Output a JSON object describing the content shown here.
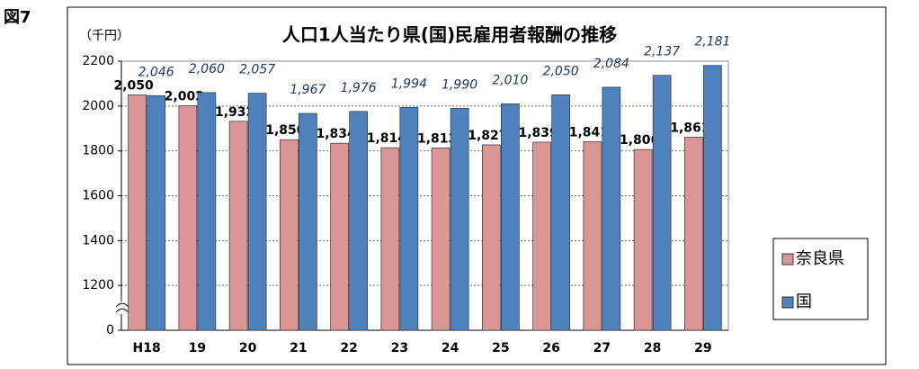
{
  "figure_label": "図7",
  "chart_data": {
    "type": "bar",
    "title": "人口1人当たり県(国)民雇用者報酬の推移",
    "y_unit": "（千円）",
    "categories": [
      "H18",
      "19",
      "20",
      "21",
      "22",
      "23",
      "24",
      "25",
      "26",
      "27",
      "28",
      "29"
    ],
    "series": [
      {
        "name": "奈良県",
        "color": "#d99694",
        "values": [
          2050,
          2002,
          1932,
          1850,
          1834,
          1814,
          1813,
          1827,
          1839,
          1841,
          1806,
          1861
        ],
        "value_labels": [
          "2,050",
          "2,002",
          "1,932",
          "1,850",
          "1,834",
          "1,814",
          "1,813",
          "1,827",
          "1,839",
          "1,841",
          "1,806",
          "1,861"
        ]
      },
      {
        "name": "国",
        "color": "#4f81bd",
        "values": [
          2046,
          2060,
          2057,
          1967,
          1976,
          1994,
          1990,
          2010,
          2050,
          2084,
          2137,
          2181
        ],
        "value_labels": [
          "2,046",
          "2,060",
          "2,057",
          "1,967",
          "1,976",
          "1,994",
          "1,990",
          "2,010",
          "2,050",
          "2,084",
          "2,137",
          "2,181"
        ]
      }
    ],
    "ylim": [
      0,
      2200
    ],
    "yticks": [
      0,
      1200,
      1400,
      1600,
      1800,
      2000,
      2200
    ],
    "axis_break": true,
    "grid": true,
    "legend": "right"
  }
}
